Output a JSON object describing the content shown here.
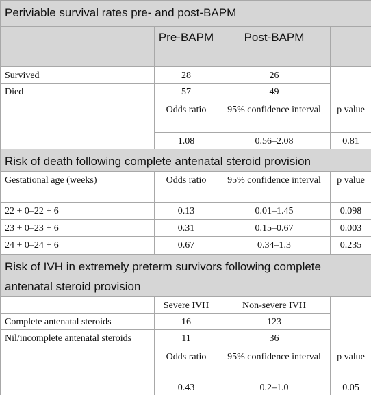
{
  "sections": [
    {
      "title": "Periviable survival rates pre- and post-BAPM",
      "columns": [
        "Pre-BAPM",
        "Post-BAPM"
      ],
      "rows": [
        {
          "label": "Survived",
          "values": [
            28,
            26
          ]
        },
        {
          "label": "Died",
          "values": [
            57,
            49
          ]
        }
      ],
      "stats_header": [
        "Odds ratio",
        "95% confidence interval",
        "p value"
      ],
      "stats": [
        1.08,
        "0.56–2.08",
        0.81
      ]
    },
    {
      "title": "Risk of death following complete antenatal steroid provision",
      "columns": [
        "Gestational age (weeks)",
        "Odds ratio",
        "95% confidence interval",
        "p value"
      ],
      "rows": [
        [
          "22 + 0–22 + 6",
          0.13,
          "0.01–1.45",
          0.098
        ],
        [
          "23 + 0–23 + 6",
          0.31,
          "0.15–0.67",
          0.003
        ],
        [
          "24 + 0–24 + 6",
          0.67,
          "0.34–1.3",
          0.235
        ]
      ]
    },
    {
      "title": "Risk of IVH in extremely preterm survivors following complete antenatal steroid provision",
      "columns": [
        "Severe IVH",
        "Non-severe IVH"
      ],
      "rows": [
        {
          "label": "Complete antenatal steroids",
          "values": [
            16,
            123
          ]
        },
        {
          "label": "Nil/incomplete antenatal steroids",
          "values": [
            11,
            36
          ]
        }
      ],
      "stats_header": [
        "Odds ratio",
        "95% confidence interval",
        "p value"
      ],
      "stats": [
        0.43,
        "0.2–1.0",
        0.05
      ]
    }
  ]
}
